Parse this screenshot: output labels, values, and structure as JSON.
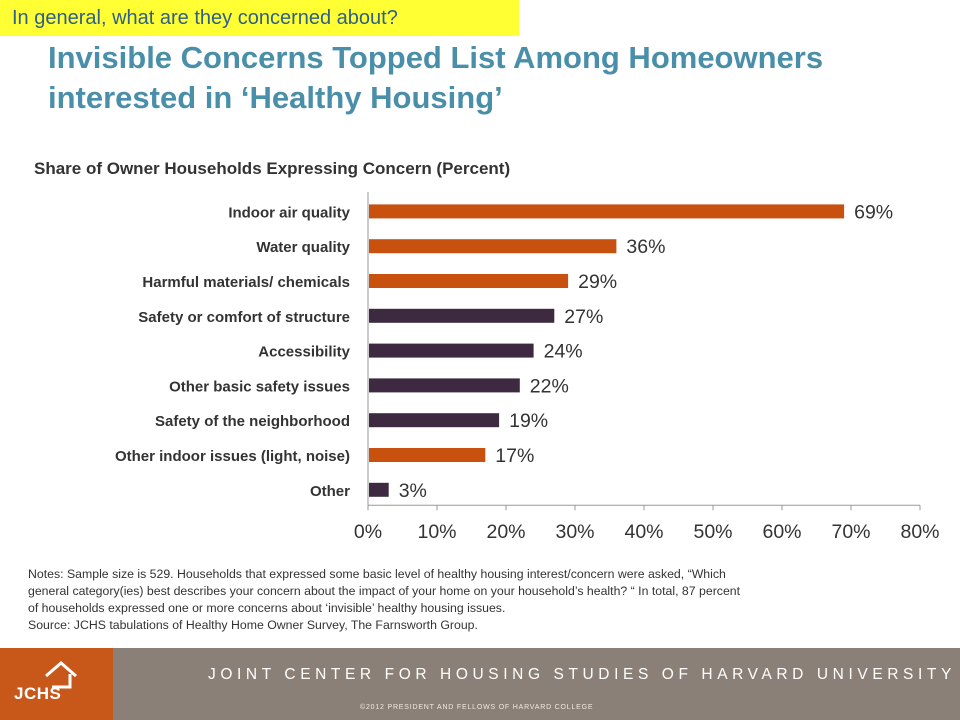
{
  "callout": "In general, what are they concerned about?",
  "title": "Invisible Concerns Topped List Among Homeowners interested in ‘Healthy Housing’",
  "chart_data": {
    "type": "bar",
    "orientation": "horizontal",
    "title": "Share of Owner Households Expressing Concern (Percent)",
    "categories": [
      "Indoor air quality",
      "Water quality",
      "Harmful materials/ chemicals",
      "Safety or comfort of structure",
      "Accessibility",
      "Other basic safety issues",
      "Safety of the neighborhood",
      "Other indoor issues (light, noise)",
      "Other"
    ],
    "values": [
      69,
      36,
      29,
      27,
      24,
      22,
      19,
      17,
      3
    ],
    "data_labels": [
      "69%",
      "36%",
      "29%",
      "27%",
      "24%",
      "22%",
      "19%",
      "17%",
      "3%"
    ],
    "bar_colors": [
      "#c8510f",
      "#c8510f",
      "#c8510f",
      "#3d2a40",
      "#3d2a40",
      "#3d2a40",
      "#3d2a40",
      "#c8510f",
      "#3d2a40"
    ],
    "xlim": [
      0,
      80
    ],
    "xticks": [
      "0%",
      "10%",
      "20%",
      "30%",
      "40%",
      "50%",
      "60%",
      "70%",
      "80%"
    ],
    "grid": false
  },
  "notes": [
    "Notes: Sample size is 529.  Households that expressed some basic level of healthy housing interest/concern were asked, “Which",
    "general category(ies) best describes your concern about the impact of your home on your household’s health? “  In total, 87 percent",
    "of households expressed one or more concerns about ‘invisible’ healthy housing issues.",
    "Source: JCHS tabulations of Healthy Home Owner Survey, The Farnsworth Group."
  ],
  "footer": {
    "logo_text": "JCHS",
    "logo_icon": "house-icon",
    "org_name": "JOINT CENTER FOR HOUSING STUDIES OF HARVARD UNIVERSITY",
    "copyright": "©2012  PRESIDENT  AND  FELLOWS  OF  HARVARD  COLLEGE"
  }
}
